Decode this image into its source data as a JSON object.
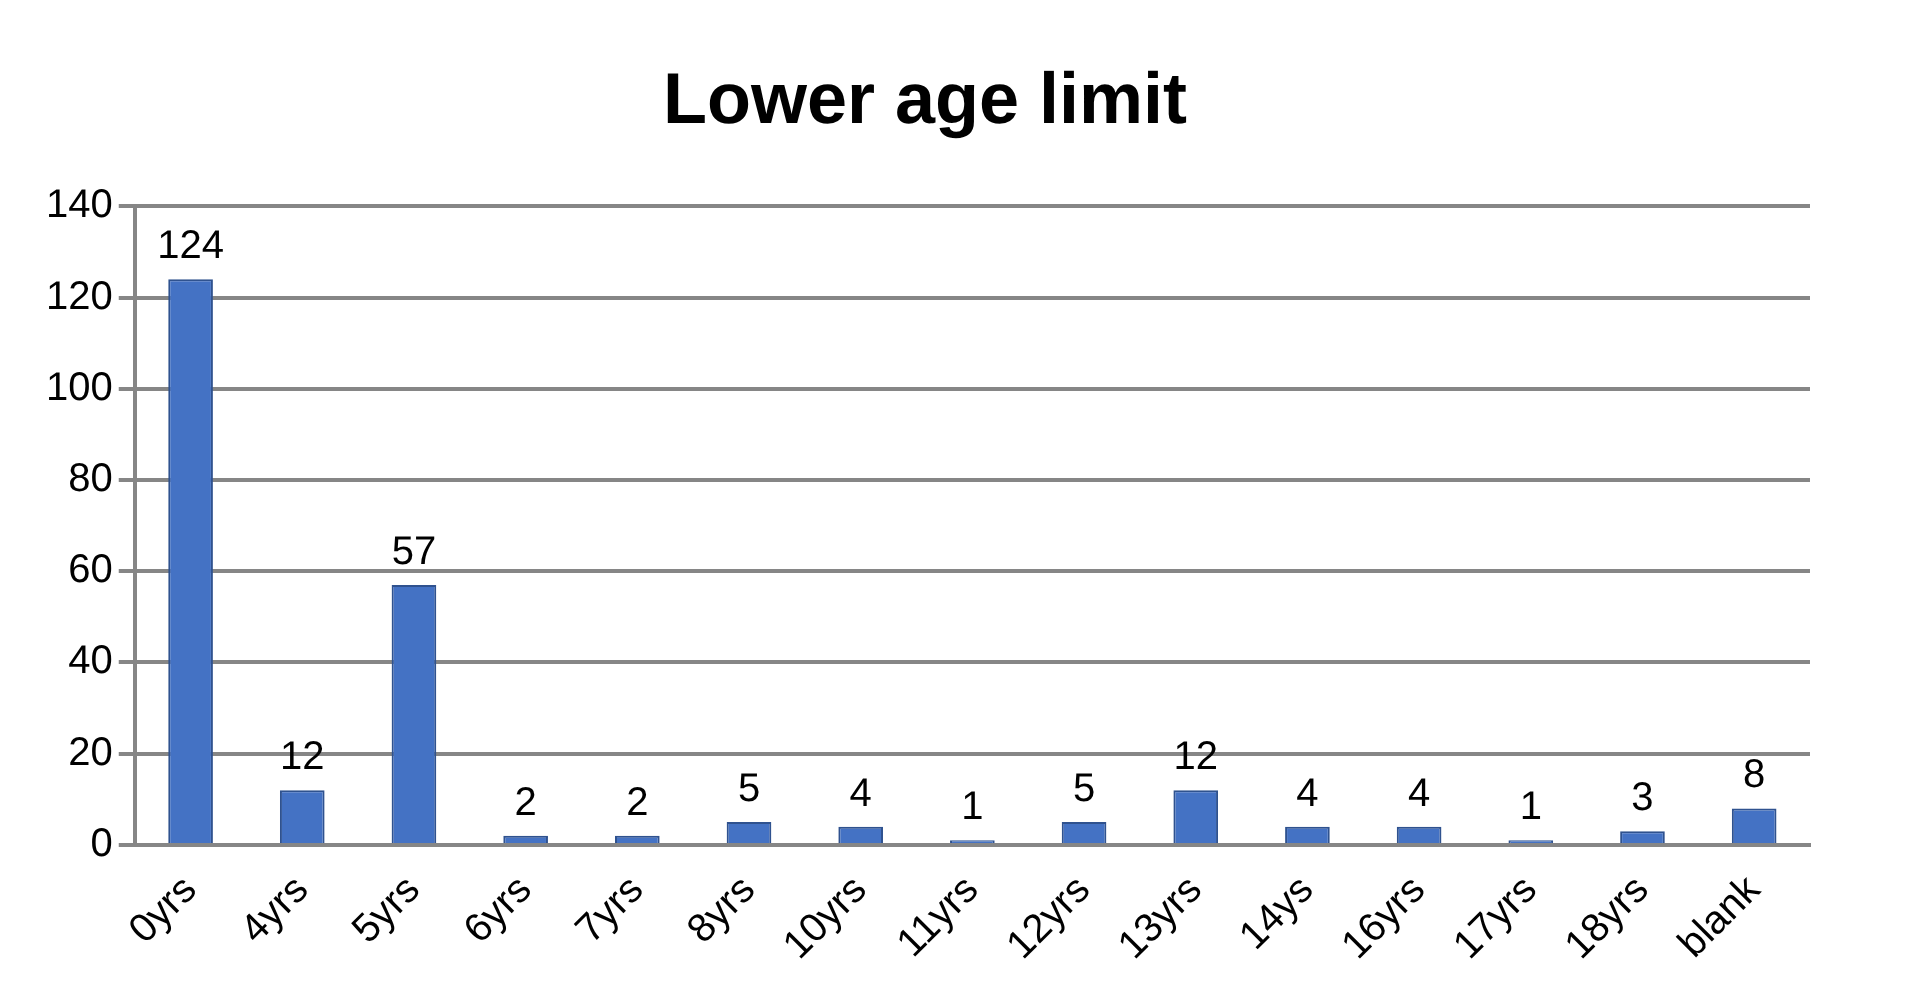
{
  "chart_data": {
    "type": "bar",
    "title": "Lower age limit",
    "categories": [
      "0yrs",
      "4yrs",
      "5yrs",
      "6yrs",
      "7yrs",
      "8yrs",
      "10yrs",
      "11yrs",
      "12yrs",
      "13yrs",
      "14ys",
      "16yrs",
      "17yrs",
      "18yrs",
      "blank"
    ],
    "values": [
      124,
      12,
      57,
      2,
      2,
      5,
      4,
      1,
      5,
      12,
      4,
      4,
      1,
      3,
      8
    ],
    "color": "#4472c4",
    "ylim": [
      0,
      140
    ],
    "yticks": [
      0,
      20,
      40,
      60,
      80,
      100,
      120,
      140
    ],
    "grid": "y",
    "data_labels": true,
    "legend": false
  }
}
